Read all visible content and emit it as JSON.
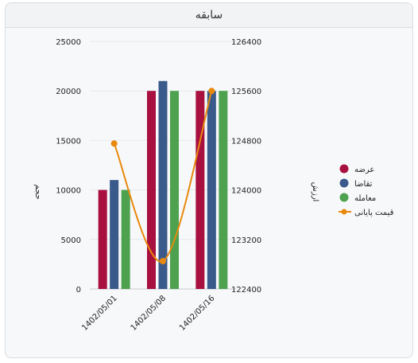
{
  "panel": {
    "title": "سابقه"
  },
  "chart_data": {
    "type": "bar",
    "categories": [
      "1402/05/01",
      "1402/05/08",
      "1402/05/16"
    ],
    "left_axis": {
      "label": "حجم",
      "ylim": [
        0,
        25000
      ],
      "ticks": [
        0,
        5000,
        10000,
        15000,
        20000,
        25000
      ]
    },
    "right_axis": {
      "label": "ارزش",
      "ylim": [
        122400,
        126400
      ],
      "ticks": [
        122400,
        123200,
        124000,
        124800,
        125600,
        126400
      ]
    },
    "series": [
      {
        "name": "عرضه",
        "type": "bar",
        "axis": "left",
        "color": "#a8103f",
        "values": [
          10000,
          20000,
          20000
        ]
      },
      {
        "name": "تقاضا",
        "type": "bar",
        "axis": "left",
        "color": "#3a5a8c",
        "values": [
          11000,
          21000,
          20000
        ]
      },
      {
        "name": "معامله",
        "type": "bar",
        "axis": "left",
        "color": "#4ea24f",
        "values": [
          10000,
          20000,
          20000
        ]
      },
      {
        "name": "قیمت پایانی",
        "type": "line",
        "axis": "right",
        "color": "#e8890c",
        "smooth": true,
        "values": [
          124750,
          122850,
          125600
        ]
      }
    ],
    "legend_position": "right",
    "grid": true
  }
}
